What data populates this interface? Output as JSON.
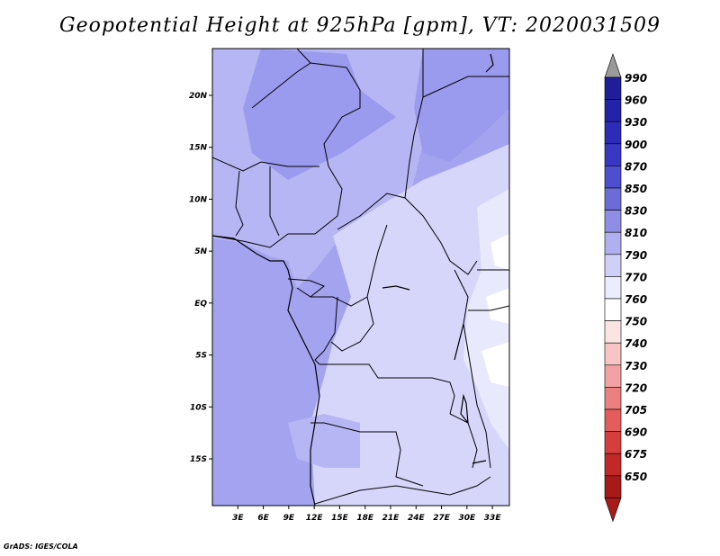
{
  "title": "Geopotential Height at 925hPa [gpm], VT: 2020031509",
  "credit": "GrADS: IGES/COLA",
  "map": {
    "lat_labels": [
      "20N",
      "15N",
      "10N",
      "5N",
      "EQ",
      "5S",
      "10S",
      "15S"
    ],
    "lat_values": [
      20,
      15,
      10,
      5,
      0,
      -5,
      -10,
      -15
    ],
    "lon_labels": [
      "3E",
      "6E",
      "9E",
      "12E",
      "15E",
      "18E",
      "21E",
      "24E",
      "27E",
      "30E",
      "33E"
    ],
    "lon_values": [
      3,
      6,
      9,
      12,
      15,
      18,
      21,
      24,
      27,
      30,
      33
    ],
    "lon_range": [
      0,
      35
    ],
    "lat_range": [
      -19.5,
      24.5
    ]
  },
  "legend": {
    "levels": [
      "990",
      "960",
      "930",
      "900",
      "870",
      "850",
      "830",
      "810",
      "790",
      "770",
      "760",
      "750",
      "740",
      "730",
      "720",
      "705",
      "690",
      "675",
      "650"
    ],
    "colors": [
      "#1e1e9a",
      "#2323aa",
      "#2c2cb8",
      "#3838c4",
      "#4e4ed0",
      "#6c6cd8",
      "#8e8ee6",
      "#b0b0f0",
      "#cfcff8",
      "#ececff",
      "#ffffff",
      "#fde4e4",
      "#f8c4c4",
      "#f2a2a2",
      "#ec8080",
      "#e45c5c",
      "#d63e3e",
      "#c22828",
      "#a81a1a"
    ],
    "top_arrow_color": "#9a9a9a",
    "bottom_arrow_color": "#a81a1a"
  },
  "fill_colors": {
    "ocean": "#a3a3f0",
    "sahel": "#9a9aee",
    "west": "#b6b6f4",
    "central": "#d6d6fb",
    "east_high": "#e9e9fd",
    "highest": "#ffffff",
    "border": "#000000"
  }
}
